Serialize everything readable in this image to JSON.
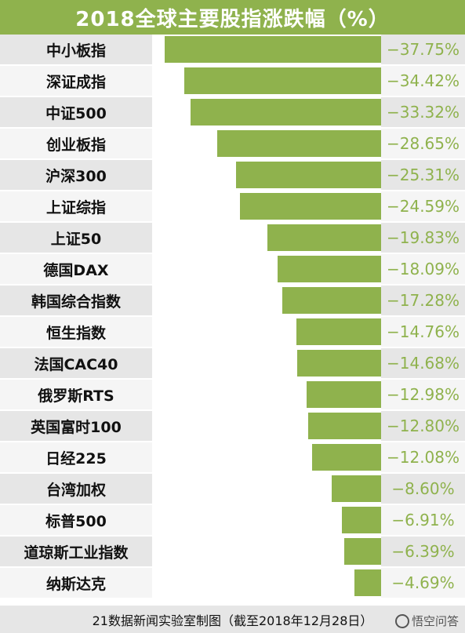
{
  "header": {
    "title": "2018全球主要股指涨跌幅（%）"
  },
  "footer": {
    "text": "21数据新闻实验室制图（截至2018年12月28日）"
  },
  "watermark": {
    "text": "悟空问答"
  },
  "colors": {
    "bar": "#8fb24d",
    "value_text": "#8fb24d",
    "title_bg": "#8fb24d"
  },
  "chart_data": {
    "type": "bar",
    "orientation": "horizontal",
    "title": "2018全球主要股指涨跌幅（%）",
    "categories": [
      "中小板指",
      "深证成指",
      "中证500",
      "创业板指",
      "沪深300",
      "上证综指",
      "上证50",
      "德国DAX",
      "韩国综合指数",
      "恒生指数",
      "法国CAC40",
      "俄罗斯RTS",
      "英国富时100",
      "日经225",
      "台湾加权",
      "标普500",
      "道琼斯工业指数",
      "纳斯达克"
    ],
    "values": [
      -37.75,
      -34.42,
      -33.32,
      -28.65,
      -25.31,
      -24.59,
      -19.83,
      -18.09,
      -17.28,
      -14.76,
      -14.68,
      -12.98,
      -12.8,
      -12.08,
      -8.6,
      -6.91,
      -6.39,
      -4.69
    ],
    "labels": [
      "−37.75%",
      "−34.42%",
      "−33.32%",
      "−28.65%",
      "−25.31%",
      "−24.59%",
      "−19.83%",
      "−18.09%",
      "−17.28%",
      "−14.76%",
      "−14.68%",
      "−12.98%",
      "−12.80%",
      "−12.08%",
      "−8.60%",
      "−6.91%",
      "−6.39%",
      "−4.69%"
    ],
    "xlim": [
      -40,
      0
    ],
    "grid": false,
    "legend": "none"
  }
}
